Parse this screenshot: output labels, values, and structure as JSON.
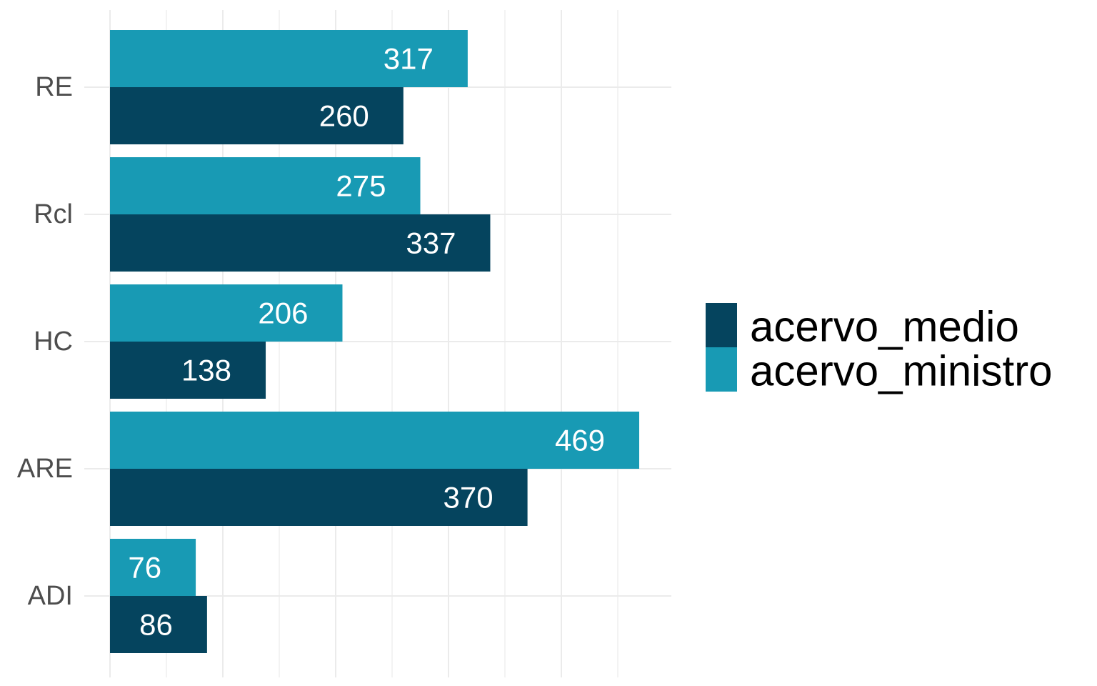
{
  "chart_data": {
    "type": "bar",
    "orientation": "horizontal",
    "categories": [
      "RE",
      "Rcl",
      "HC",
      "ARE",
      "ADI"
    ],
    "series": [
      {
        "name": "acervo_medio",
        "color": "#05445e",
        "values": [
          260,
          337,
          138,
          370,
          86
        ],
        "labels": [
          "260",
          "337",
          "138",
          "370",
          "86"
        ]
      },
      {
        "name": "acervo_ministro",
        "color": "#189ab4",
        "values": [
          317,
          275,
          206,
          469,
          76
        ],
        "labels": [
          "317",
          "275",
          "206",
          "469",
          "76"
        ]
      }
    ],
    "title": "",
    "xlabel": "",
    "ylabel": "",
    "xlim": [
      0,
      493
    ],
    "x_tick_labels_shown": false,
    "grid": true,
    "legend_position": "right",
    "gridline_color": "#ebebeb",
    "category_label_color": "#4d4d4d",
    "bar_label_color": "#ffffff"
  }
}
